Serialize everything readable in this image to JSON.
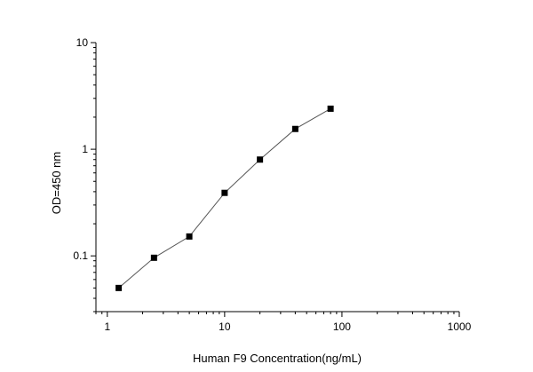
{
  "chart_data": {
    "type": "scatter",
    "title": "",
    "xlabel": "Human F9  Concentration(ng/mL)",
    "ylabel": "OD=450 nm",
    "x_scale": "log",
    "y_scale": "log",
    "xlim": [
      0.8,
      1000
    ],
    "ylim": [
      0.03,
      10
    ],
    "x_ticks": [
      1,
      10,
      100,
      1000
    ],
    "x_tick_labels": [
      "1",
      "10",
      "100",
      "1000"
    ],
    "y_ticks": [
      0.1,
      1,
      10
    ],
    "y_tick_labels": [
      "0.1",
      "1",
      "10"
    ],
    "grid": false,
    "legend": "none",
    "series": [
      {
        "x": [
          1.25,
          2.5,
          5,
          10,
          20,
          40,
          80
        ],
        "y": [
          0.05,
          0.096,
          0.152,
          0.39,
          0.8,
          1.55,
          2.4
        ],
        "marker": "square",
        "color": "#000000",
        "line_color": "#555555"
      }
    ]
  }
}
